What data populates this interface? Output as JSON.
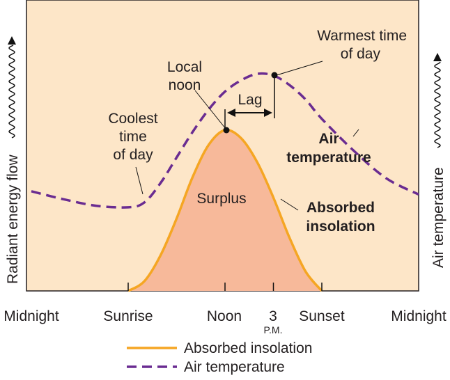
{
  "chart_data": {
    "type": "line",
    "x_ticks": [
      "Midnight",
      "Sunrise",
      "Noon",
      "3",
      "Sunset",
      "Midnight"
    ],
    "x_tick_sublabels": {
      "3": "P.M."
    },
    "xlabel": "",
    "ylabel_left": "Radiant energy flow",
    "ylabel_right": "Air temperature",
    "x_range_hours": [
      0,
      24
    ],
    "series": [
      {
        "name": "Absorbed insolation",
        "color": "#f5a623",
        "fill": "#f7b99a",
        "x": [
          6,
          7,
          8,
          9,
          10,
          11,
          12,
          13,
          14,
          15,
          16,
          17,
          18
        ],
        "y": [
          0,
          0.06,
          0.22,
          0.45,
          0.71,
          0.91,
          1.0,
          0.95,
          0.8,
          0.58,
          0.33,
          0.12,
          0
        ]
      },
      {
        "name": "Air temperature",
        "color": "#6a2c91",
        "style": "dashed",
        "x": [
          0,
          2,
          4,
          6,
          7,
          8,
          9,
          10,
          11,
          12,
          13,
          14,
          15,
          16,
          17,
          18,
          20,
          22,
          24
        ],
        "y": [
          0.62,
          0.57,
          0.53,
          0.52,
          0.55,
          0.67,
          0.83,
          0.99,
          1.13,
          1.24,
          1.31,
          1.35,
          1.34,
          1.28,
          1.19,
          1.07,
          0.87,
          0.7,
          0.6
        ]
      }
    ],
    "annotations": {
      "coolest": [
        "Coolest",
        "time",
        "of day"
      ],
      "local_noon": [
        "Local",
        "noon"
      ],
      "warmest": [
        "Warmest time",
        "of day"
      ],
      "lag": "Lag",
      "surplus": "Surplus",
      "air_temp_label": [
        "Air",
        "temperature"
      ],
      "absorbed_label": [
        "Absorbed",
        "insolation"
      ]
    },
    "legend": [
      {
        "label": "Absorbed insolation",
        "style": "solid",
        "color": "#f5a623"
      },
      {
        "label": "Air temperature",
        "style": "dashed",
        "color": "#6a2c91"
      }
    ],
    "legend_position": "bottom-center",
    "plot_background": "#fde6c8",
    "grid": false
  }
}
